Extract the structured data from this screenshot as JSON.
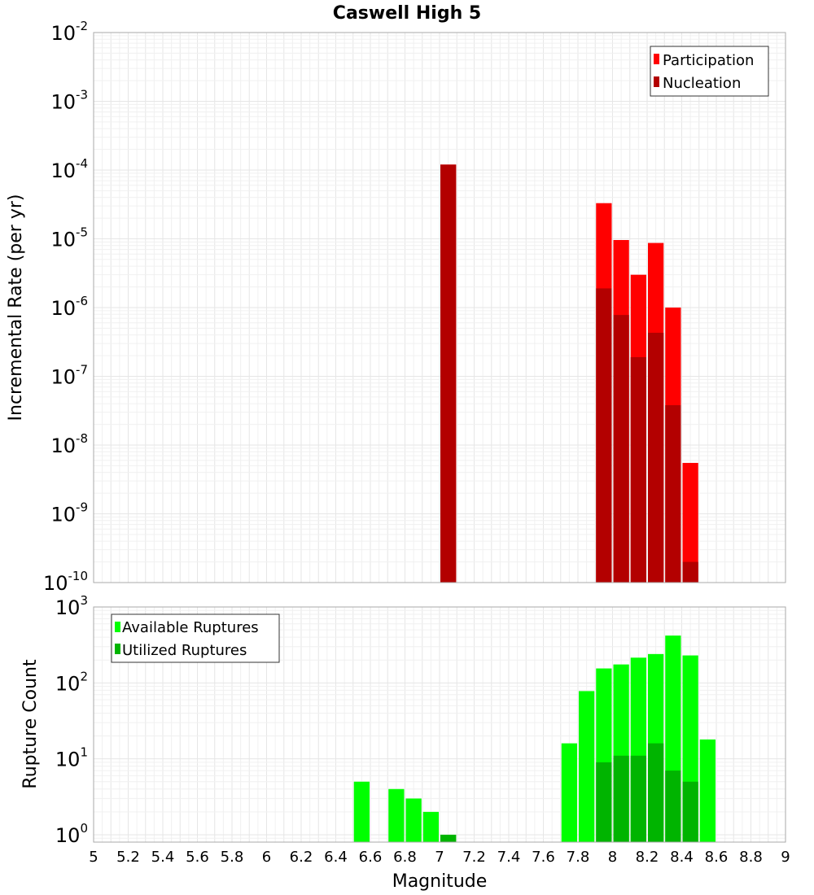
{
  "colors": {
    "participation": "#ff0000",
    "nucleation": "#b30000",
    "available": "#00ff00",
    "utilized": "#00b400",
    "grid_major": "#e6e6e6",
    "grid_minor": "#f0f0f0",
    "frame": "#aaaaaa"
  },
  "chart_data": [
    {
      "type": "bar",
      "title": "Caswell High 5",
      "xlabel": "",
      "ylabel": "Incremental Rate (per yr)",
      "yscale": "log",
      "xlim": [
        5,
        9
      ],
      "ylim": [
        1e-10,
        0.01
      ],
      "bin_width": 0.1,
      "grid": true,
      "legend_position": "top-right",
      "y_tick_labels": [
        "10^-10",
        "10^-9",
        "10^-8",
        "10^-7",
        "10^-6",
        "10^-5",
        "10^-4",
        "10^-3",
        "10^-2"
      ],
      "x": [
        7.05,
        7.95,
        8.05,
        8.15,
        8.25,
        8.35,
        8.45
      ],
      "series": [
        {
          "name": "Participation",
          "values": [
            0.00012,
            3.3e-05,
            9.6e-06,
            3e-06,
            8.7e-06,
            1e-06,
            5.5e-09
          ]
        },
        {
          "name": "Nucleation",
          "values": [
            0.00012,
            1.9e-06,
            7.8e-07,
            1.9e-07,
            4.3e-07,
            3.8e-08,
            2e-10
          ]
        }
      ]
    },
    {
      "type": "bar",
      "title": "",
      "xlabel": "Magnitude",
      "ylabel": "Rupture Count",
      "yscale": "log",
      "xlim": [
        5,
        9
      ],
      "ylim": [
        0.8,
        1000
      ],
      "bin_width": 0.1,
      "grid": true,
      "legend_position": "top-left",
      "x_tick_labels": [
        "5",
        "5.2",
        "5.4",
        "5.6",
        "5.8",
        "6",
        "6.2",
        "6.4",
        "6.6",
        "6.8",
        "7",
        "7.2",
        "7.4",
        "7.6",
        "7.8",
        "8",
        "8.2",
        "8.4",
        "8.6",
        "8.8",
        "9"
      ],
      "y_tick_labels": [
        "10^0",
        "10^1",
        "10^2",
        "10^3"
      ],
      "series": [
        {
          "name": "Available Ruptures",
          "x": [
            6.55,
            6.75,
            6.85,
            6.95,
            7.05,
            7.75,
            7.85,
            7.95,
            8.05,
            8.15,
            8.25,
            8.35,
            8.45,
            8.55
          ],
          "values": [
            5,
            4,
            3,
            2,
            1,
            16,
            78,
            155,
            175,
            215,
            240,
            420,
            230,
            18
          ]
        },
        {
          "name": "Utilized Ruptures",
          "x": [
            7.05,
            7.95,
            8.05,
            8.15,
            8.25,
            8.35,
            8.45
          ],
          "values": [
            1,
            9,
            11,
            11,
            16,
            7,
            5
          ]
        }
      ]
    }
  ]
}
